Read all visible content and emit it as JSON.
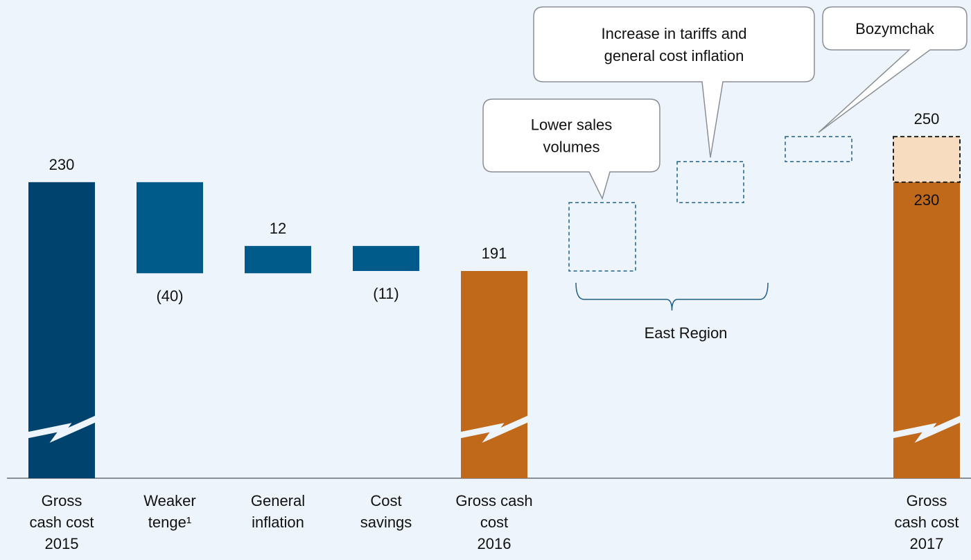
{
  "chart_data": {
    "type": "waterfall",
    "ylim": [
      100,
      310
    ],
    "items": [
      {
        "category": "Gross\ncash cost\n2015",
        "value": 230,
        "kind": "total",
        "color": "#00436f"
      },
      {
        "category": "Weaker\ntenge¹",
        "value": -40,
        "value_label": "(40)",
        "kind": "delta",
        "color": "#005a8a"
      },
      {
        "category": "General\ninflation",
        "value": 12,
        "kind": "delta",
        "color": "#005a8a"
      },
      {
        "category": "Cost\nsavings",
        "value": -11,
        "value_label": "(11)",
        "kind": "delta",
        "color": "#005a8a"
      },
      {
        "category": "Gross cash\ncost\n2016",
        "value": 191,
        "kind": "total",
        "color": "#c0691a"
      },
      {
        "category": null,
        "value": 30,
        "kind": "placeholder",
        "color": "#1f5f8b"
      },
      {
        "category": null,
        "value": 18,
        "kind": "placeholder",
        "color": "#1f5f8b"
      },
      {
        "category": null,
        "value": 11,
        "kind": "placeholder",
        "color": "#1f5f8b"
      },
      {
        "category": "Gross\ncash cost\n2017",
        "value": 250,
        "base_value": 230,
        "kind": "total",
        "color": "#f8dcc0",
        "base_color": "#c0691a"
      }
    ],
    "annotations": [
      {
        "text": "Lower sales\nvolumes",
        "target": 5
      },
      {
        "text": "Increase in tariffs and\ngeneral cost inflation",
        "target": 6
      },
      {
        "text": "Bozymchak",
        "target": 7
      }
    ],
    "group_label": "East Region"
  }
}
